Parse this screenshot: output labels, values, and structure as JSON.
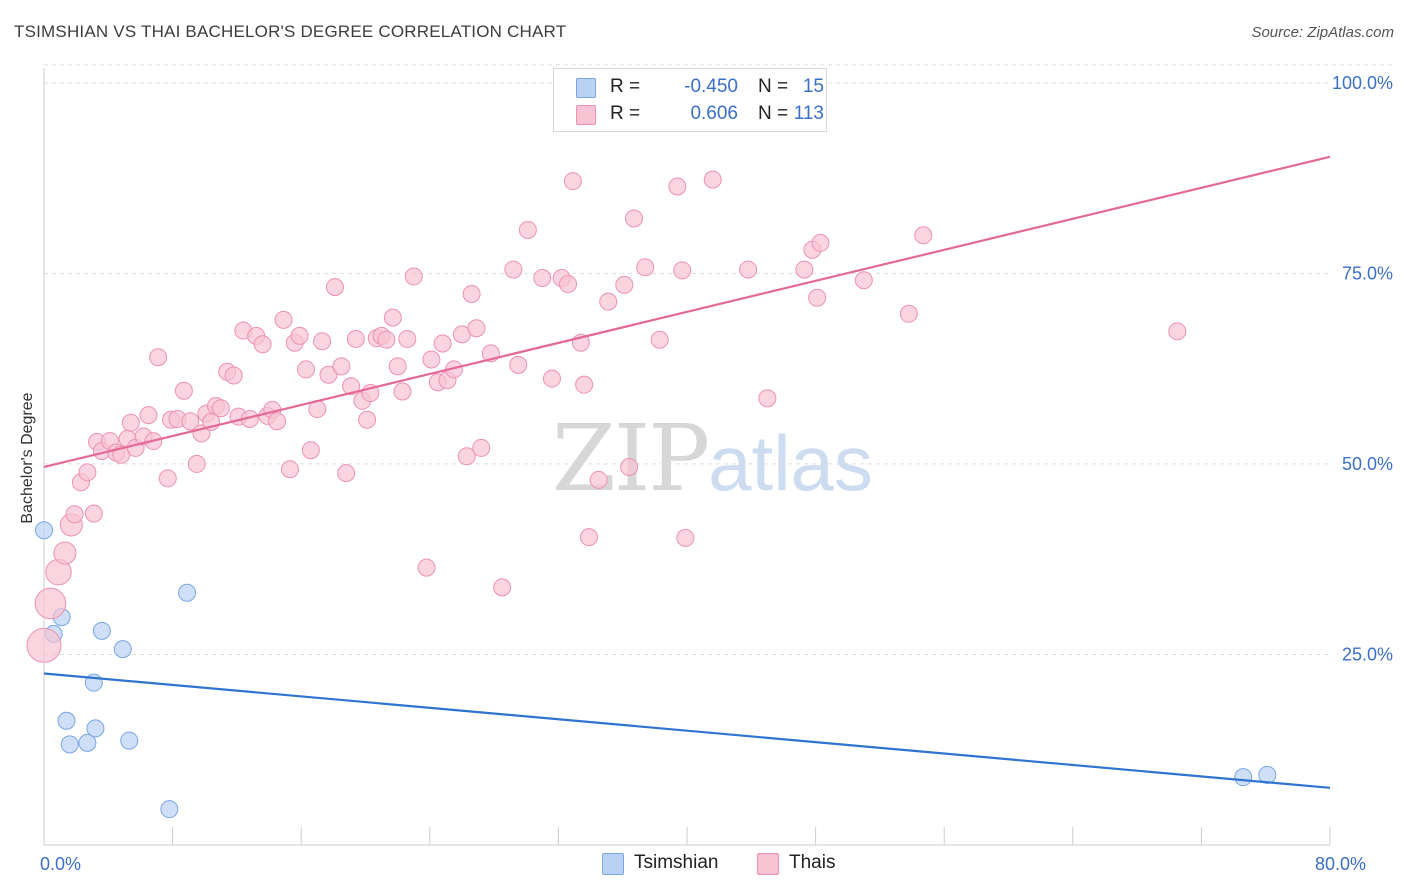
{
  "title": "TSIMSHIAN VS THAI BACHELOR'S DEGREE CORRELATION CHART",
  "source": "Source: ZipAtlas.com",
  "watermark": {
    "zip": "ZIP",
    "atlas": "atlas"
  },
  "legend": {
    "r_label": "R =",
    "n_label": "N =",
    "rows": [
      {
        "name": "Tsimshian",
        "r": "-0.450",
        "n": "15"
      },
      {
        "name": "Thais",
        "r": "0.606",
        "n": "113"
      }
    ]
  },
  "colors": {
    "tsimshian_fill": "#b9d2f3",
    "tsimshian_stroke": "#7aa6e4",
    "tsimshian_line": "#2f74d0",
    "thais_fill": "#f8c3d3",
    "thais_stroke": "#ec92b0",
    "thais_line": "#e46a95",
    "tick_label": "#3b6fc9",
    "grid": "#dddddd"
  },
  "chart_data": {
    "type": "scatter",
    "title": "TSIMSHIAN VS THAI BACHELOR'S DEGREE CORRELATION CHART",
    "xlabel": "",
    "ylabel": "Bachelor's Degree",
    "xlim": [
      0,
      80
    ],
    "ylim": [
      0,
      103
    ],
    "x_tick_labels": [
      {
        "value": 0,
        "label": "0.0%"
      },
      {
        "value": 80,
        "label": "80.0%"
      }
    ],
    "y_tick_labels": [
      {
        "value": 25,
        "label": "25.0%"
      },
      {
        "value": 50,
        "label": "50.0%"
      },
      {
        "value": 75,
        "label": "75.0%"
      },
      {
        "value": 100,
        "label": "100.0%"
      }
    ],
    "grid": true,
    "legend_position": "top-center",
    "series": [
      {
        "name": "Tsimshian",
        "trend": {
          "x": [
            0,
            80
          ],
          "y": [
            22.5,
            7.5
          ]
        },
        "points": [
          {
            "x": 0.0,
            "y": 41.3
          },
          {
            "x": 0.6,
            "y": 27.7
          },
          {
            "x": 1.1,
            "y": 29.9
          },
          {
            "x": 1.4,
            "y": 16.3
          },
          {
            "x": 1.6,
            "y": 13.2
          },
          {
            "x": 2.7,
            "y": 13.4
          },
          {
            "x": 3.1,
            "y": 21.3
          },
          {
            "x": 3.2,
            "y": 15.3
          },
          {
            "x": 3.6,
            "y": 28.1
          },
          {
            "x": 4.9,
            "y": 25.7
          },
          {
            "x": 5.3,
            "y": 13.7
          },
          {
            "x": 7.8,
            "y": 4.7
          },
          {
            "x": 8.9,
            "y": 33.1
          },
          {
            "x": 74.6,
            "y": 8.9
          },
          {
            "x": 76.1,
            "y": 9.2
          }
        ]
      },
      {
        "name": "Thais",
        "trend": {
          "x": [
            0,
            80
          ],
          "y": [
            49.6,
            90.3
          ]
        },
        "points": [
          {
            "x": 0.0,
            "y": 26.2,
            "s": 2.0
          },
          {
            "x": 0.4,
            "y": 31.7,
            "s": 1.8
          },
          {
            "x": 0.9,
            "y": 35.8,
            "s": 1.5
          },
          {
            "x": 1.3,
            "y": 38.3,
            "s": 1.3
          },
          {
            "x": 1.7,
            "y": 42.0,
            "s": 1.3
          },
          {
            "x": 1.9,
            "y": 43.4
          },
          {
            "x": 2.3,
            "y": 47.6
          },
          {
            "x": 2.7,
            "y": 48.9
          },
          {
            "x": 3.1,
            "y": 43.5
          },
          {
            "x": 3.3,
            "y": 52.9
          },
          {
            "x": 3.6,
            "y": 51.7
          },
          {
            "x": 4.1,
            "y": 53.0
          },
          {
            "x": 4.5,
            "y": 51.5
          },
          {
            "x": 4.8,
            "y": 51.2
          },
          {
            "x": 5.2,
            "y": 53.3
          },
          {
            "x": 5.4,
            "y": 55.4
          },
          {
            "x": 5.7,
            "y": 52.1
          },
          {
            "x": 6.2,
            "y": 53.6
          },
          {
            "x": 6.5,
            "y": 56.4
          },
          {
            "x": 6.8,
            "y": 53.0
          },
          {
            "x": 7.1,
            "y": 64.0
          },
          {
            "x": 7.7,
            "y": 48.1
          },
          {
            "x": 7.9,
            "y": 55.8
          },
          {
            "x": 8.3,
            "y": 55.9
          },
          {
            "x": 8.7,
            "y": 59.6
          },
          {
            "x": 9.1,
            "y": 55.6
          },
          {
            "x": 9.5,
            "y": 50.0
          },
          {
            "x": 9.8,
            "y": 54.0
          },
          {
            "x": 10.1,
            "y": 56.6
          },
          {
            "x": 10.4,
            "y": 55.5
          },
          {
            "x": 10.7,
            "y": 57.6
          },
          {
            "x": 11.0,
            "y": 57.3
          },
          {
            "x": 11.4,
            "y": 62.1
          },
          {
            "x": 11.8,
            "y": 61.6
          },
          {
            "x": 12.1,
            "y": 56.2
          },
          {
            "x": 12.4,
            "y": 67.5
          },
          {
            "x": 12.8,
            "y": 55.9
          },
          {
            "x": 13.2,
            "y": 66.8
          },
          {
            "x": 13.6,
            "y": 65.7
          },
          {
            "x": 13.9,
            "y": 56.3
          },
          {
            "x": 14.2,
            "y": 57.1
          },
          {
            "x": 14.5,
            "y": 55.6
          },
          {
            "x": 14.9,
            "y": 68.9
          },
          {
            "x": 15.3,
            "y": 49.3
          },
          {
            "x": 15.6,
            "y": 65.9
          },
          {
            "x": 15.9,
            "y": 66.8
          },
          {
            "x": 16.3,
            "y": 62.4
          },
          {
            "x": 16.6,
            "y": 51.8
          },
          {
            "x": 17.0,
            "y": 57.2
          },
          {
            "x": 17.3,
            "y": 66.1
          },
          {
            "x": 17.7,
            "y": 61.7
          },
          {
            "x": 18.1,
            "y": 73.2
          },
          {
            "x": 18.5,
            "y": 62.8
          },
          {
            "x": 18.8,
            "y": 48.8
          },
          {
            "x": 19.1,
            "y": 60.2
          },
          {
            "x": 19.4,
            "y": 66.4
          },
          {
            "x": 19.8,
            "y": 58.3
          },
          {
            "x": 20.1,
            "y": 55.8
          },
          {
            "x": 20.3,
            "y": 59.3
          },
          {
            "x": 20.7,
            "y": 66.5
          },
          {
            "x": 21.0,
            "y": 66.8
          },
          {
            "x": 21.3,
            "y": 66.3
          },
          {
            "x": 21.7,
            "y": 69.2
          },
          {
            "x": 22.0,
            "y": 62.8
          },
          {
            "x": 22.3,
            "y": 59.5
          },
          {
            "x": 22.6,
            "y": 66.4
          },
          {
            "x": 23.0,
            "y": 74.6
          },
          {
            "x": 23.8,
            "y": 36.4
          },
          {
            "x": 24.1,
            "y": 63.7
          },
          {
            "x": 24.5,
            "y": 60.7
          },
          {
            "x": 24.8,
            "y": 65.8
          },
          {
            "x": 25.1,
            "y": 61.0
          },
          {
            "x": 25.5,
            "y": 62.4
          },
          {
            "x": 26.0,
            "y": 67.0
          },
          {
            "x": 26.3,
            "y": 51.0
          },
          {
            "x": 26.6,
            "y": 72.3
          },
          {
            "x": 26.9,
            "y": 67.8
          },
          {
            "x": 27.2,
            "y": 52.1
          },
          {
            "x": 27.8,
            "y": 64.5
          },
          {
            "x": 28.5,
            "y": 33.8
          },
          {
            "x": 29.2,
            "y": 75.5
          },
          {
            "x": 29.5,
            "y": 63.0
          },
          {
            "x": 30.1,
            "y": 80.7
          },
          {
            "x": 31.0,
            "y": 74.4
          },
          {
            "x": 31.6,
            "y": 61.2
          },
          {
            "x": 32.2,
            "y": 74.4
          },
          {
            "x": 32.6,
            "y": 73.6
          },
          {
            "x": 32.9,
            "y": 87.1
          },
          {
            "x": 33.4,
            "y": 65.9
          },
          {
            "x": 33.6,
            "y": 60.4
          },
          {
            "x": 33.9,
            "y": 40.4
          },
          {
            "x": 34.5,
            "y": 47.9
          },
          {
            "x": 35.1,
            "y": 71.3
          },
          {
            "x": 36.1,
            "y": 73.5
          },
          {
            "x": 36.4,
            "y": 49.6
          },
          {
            "x": 36.7,
            "y": 82.2
          },
          {
            "x": 37.4,
            "y": 75.8
          },
          {
            "x": 38.3,
            "y": 66.3
          },
          {
            "x": 39.4,
            "y": 86.4
          },
          {
            "x": 39.7,
            "y": 75.4
          },
          {
            "x": 39.9,
            "y": 40.3
          },
          {
            "x": 41.6,
            "y": 87.3
          },
          {
            "x": 43.8,
            "y": 75.5
          },
          {
            "x": 45.0,
            "y": 58.6
          },
          {
            "x": 47.3,
            "y": 75.5
          },
          {
            "x": 47.8,
            "y": 78.1
          },
          {
            "x": 48.1,
            "y": 71.8
          },
          {
            "x": 48.3,
            "y": 79.0
          },
          {
            "x": 51.0,
            "y": 74.1
          },
          {
            "x": 53.8,
            "y": 69.7
          },
          {
            "x": 54.7,
            "y": 80.0
          },
          {
            "x": 70.5,
            "y": 67.4
          }
        ]
      }
    ]
  }
}
